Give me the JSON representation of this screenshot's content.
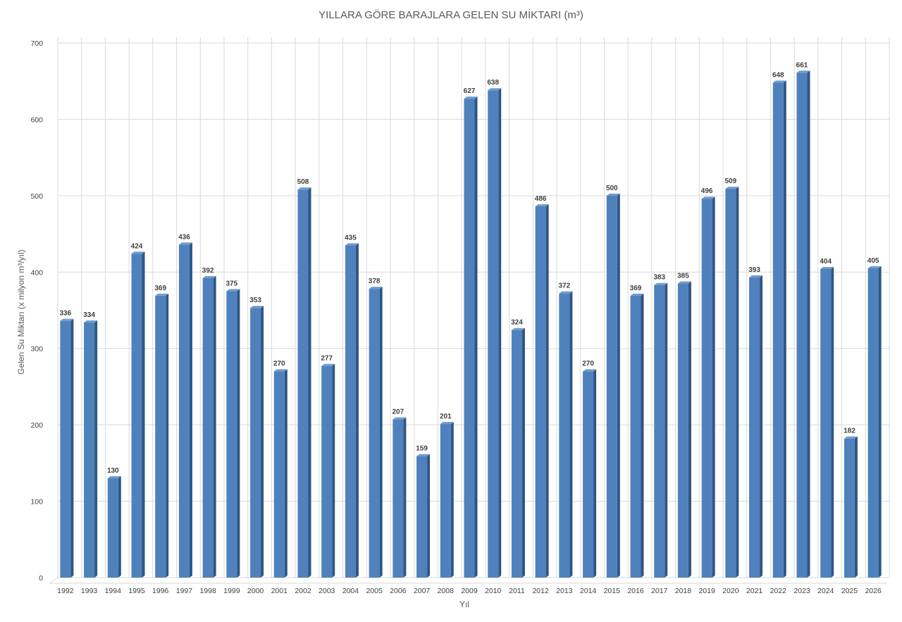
{
  "chart_data": {
    "type": "bar",
    "title": "YILLARA GÖRE BARAJLARA GELEN SU MİKTARI (m³)",
    "xlabel": "Yıl",
    "ylabel": "Gelen Su Miktarı (x milyon m³/yıl)",
    "ylim": [
      0,
      700
    ],
    "yticks": [
      0,
      100,
      200,
      300,
      400,
      500,
      600,
      700
    ],
    "grid": true,
    "legend": "none",
    "bar_color": "#4F81BD",
    "bar_side_color": "#2F5683",
    "bar_top_color": "#6F9AD0",
    "categories": [
      "1992",
      "1993",
      "1994",
      "1995",
      "1996",
      "1997",
      "1998",
      "1999",
      "2000",
      "2001",
      "2002",
      "2003",
      "2004",
      "2005",
      "2006",
      "2007",
      "2008",
      "2009",
      "2010",
      "2011",
      "2012",
      "2013",
      "2014",
      "2015",
      "2016",
      "2017",
      "2018",
      "2019",
      "2020",
      "2021",
      "2022",
      "2023",
      "2024",
      "2025",
      "2026"
    ],
    "values": [
      336,
      334,
      130,
      424,
      369,
      436,
      392,
      375,
      353,
      270,
      508,
      277,
      435,
      378,
      207,
      159,
      201,
      627,
      638,
      324,
      486,
      372,
      270,
      500,
      369,
      383,
      385,
      496,
      509,
      393,
      648,
      661,
      404,
      182,
      405
    ]
  }
}
